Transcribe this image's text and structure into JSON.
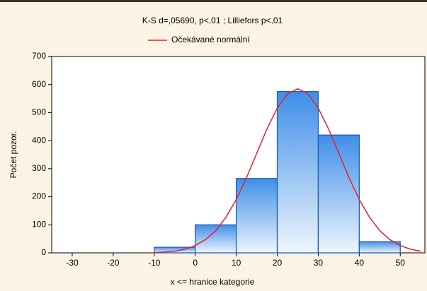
{
  "chart_data": {
    "type": "histogram",
    "title": "K-S d=,05690, p<,01 ; Lilliefors p<,01",
    "xlabel": "x <= hranice kategorie",
    "ylabel": "Počet pozor.",
    "bins": [
      -10,
      0,
      10,
      20,
      30,
      40,
      50
    ],
    "values": [
      20,
      100,
      265,
      575,
      420,
      40
    ],
    "color": "#1f5fb8",
    "xlim": [
      -35,
      56
    ],
    "ylim": [
      0,
      700
    ],
    "xticks": [
      -30,
      -20,
      -10,
      0,
      10,
      20,
      30,
      40,
      50
    ],
    "yticks": [
      0,
      100,
      200,
      300,
      400,
      500,
      600,
      700
    ],
    "curve": {
      "type": "line",
      "name": "Očekávané normální",
      "color": "#e8202a",
      "x": [
        -10,
        -7.5,
        -5,
        -2.5,
        0,
        2.5,
        5,
        7.5,
        10,
        12.5,
        15,
        17.5,
        20,
        22.5,
        25,
        27.5,
        30,
        32.5,
        35,
        37.5,
        40,
        42.5,
        45,
        47.5,
        50,
        52.5,
        55
      ],
      "values": [
        1,
        3,
        6,
        13,
        26,
        47,
        79,
        127,
        190,
        268,
        355,
        442,
        516,
        567,
        585,
        567,
        516,
        442,
        355,
        268,
        190,
        127,
        79,
        47,
        26,
        13,
        6
      ]
    }
  }
}
